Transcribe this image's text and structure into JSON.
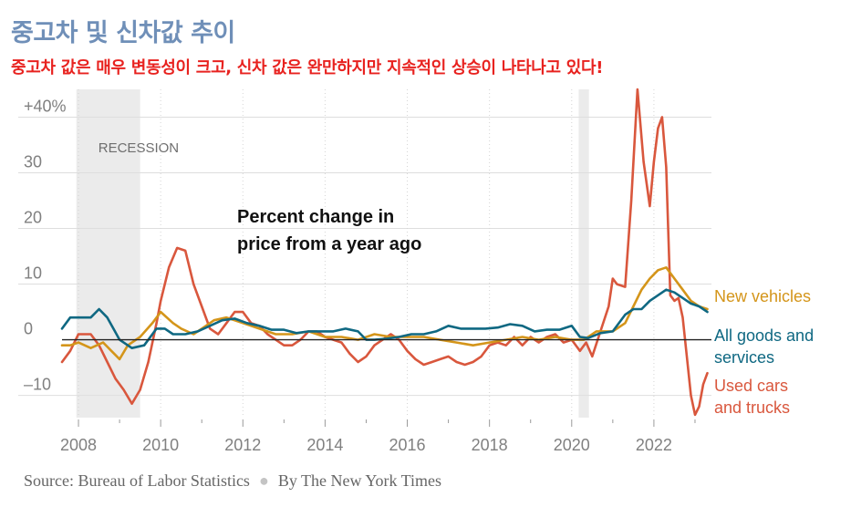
{
  "title": "중고차 및 신차값 추이",
  "subtitle": "중고차 값은 매우 변동성이 크고, 신차 값은 완만하지만 지속적인 상승이 나타나고 있다!",
  "source": {
    "label": "Source: Bureau of Labor Statistics",
    "byline": "By The New York Times"
  },
  "chart_data": {
    "type": "line",
    "title": "Percent change in price from a year ago",
    "annotation_lines": [
      "Percent change in",
      "price from a year ago"
    ],
    "recession_label": "RECESSION",
    "recessions": [
      [
        2007.95,
        2009.5
      ],
      [
        2020.17,
        2020.42
      ]
    ],
    "xlim": [
      2007.6,
      2023.4
    ],
    "ylim": [
      -14,
      45
    ],
    "x_ticks": [
      2008,
      2010,
      2012,
      2014,
      2016,
      2018,
      2020,
      2022
    ],
    "x_tick_labels": [
      "2008",
      "2010",
      "2012",
      "2014",
      "2016",
      "2018",
      "2020",
      "2022"
    ],
    "y_ticks": [
      40,
      30,
      20,
      10,
      0,
      -10
    ],
    "y_tick_labels": [
      "+40%",
      "30",
      "20",
      "10",
      "0",
      "–10"
    ],
    "series": [
      {
        "name": "New vehicles",
        "legend": [
          "New vehicles"
        ],
        "color": "#d4951a",
        "points": [
          [
            2007.6,
            -1
          ],
          [
            2007.8,
            -1
          ],
          [
            2008.0,
            -0.5
          ],
          [
            2008.3,
            -1.5
          ],
          [
            2008.6,
            -0.5
          ],
          [
            2008.8,
            -2
          ],
          [
            2009.0,
            -3.5
          ],
          [
            2009.2,
            -1
          ],
          [
            2009.5,
            0.5
          ],
          [
            2009.8,
            3
          ],
          [
            2010.0,
            5
          ],
          [
            2010.3,
            3
          ],
          [
            2010.5,
            2
          ],
          [
            2010.8,
            1
          ],
          [
            2011.0,
            2
          ],
          [
            2011.3,
            3.5
          ],
          [
            2011.6,
            4
          ],
          [
            2012.0,
            3
          ],
          [
            2012.4,
            2
          ],
          [
            2012.8,
            1
          ],
          [
            2013.2,
            1
          ],
          [
            2013.6,
            1.5
          ],
          [
            2014.0,
            0.5
          ],
          [
            2014.4,
            0.5
          ],
          [
            2014.8,
            0
          ],
          [
            2015.2,
            1
          ],
          [
            2015.6,
            0.5
          ],
          [
            2016.0,
            0.5
          ],
          [
            2016.4,
            0.5
          ],
          [
            2016.8,
            0
          ],
          [
            2017.2,
            -0.5
          ],
          [
            2017.6,
            -1
          ],
          [
            2018.0,
            -0.5
          ],
          [
            2018.4,
            0
          ],
          [
            2018.8,
            0.5
          ],
          [
            2019.2,
            0
          ],
          [
            2019.6,
            0.5
          ],
          [
            2020.0,
            0
          ],
          [
            2020.3,
            0
          ],
          [
            2020.6,
            1.5
          ],
          [
            2021.0,
            1.5
          ],
          [
            2021.3,
            3
          ],
          [
            2021.5,
            6
          ],
          [
            2021.7,
            9
          ],
          [
            2021.9,
            11
          ],
          [
            2022.1,
            12.5
          ],
          [
            2022.3,
            13
          ],
          [
            2022.5,
            11
          ],
          [
            2022.7,
            9
          ],
          [
            2022.9,
            7
          ],
          [
            2023.1,
            6
          ],
          [
            2023.3,
            5.5
          ]
        ]
      },
      {
        "name": "All goods and services",
        "legend": [
          "All goods and",
          "services"
        ],
        "color": "#0f6882",
        "points": [
          [
            2007.6,
            2
          ],
          [
            2007.8,
            4
          ],
          [
            2008.0,
            4
          ],
          [
            2008.3,
            4
          ],
          [
            2008.5,
            5.5
          ],
          [
            2008.7,
            4
          ],
          [
            2009.0,
            0
          ],
          [
            2009.3,
            -1.5
          ],
          [
            2009.6,
            -1
          ],
          [
            2009.9,
            2
          ],
          [
            2010.1,
            2
          ],
          [
            2010.3,
            1
          ],
          [
            2010.6,
            1
          ],
          [
            2010.9,
            1.5
          ],
          [
            2011.2,
            2.5
          ],
          [
            2011.5,
            3.5
          ],
          [
            2011.8,
            3.8
          ],
          [
            2012.1,
            3
          ],
          [
            2012.4,
            2.5
          ],
          [
            2012.7,
            1.8
          ],
          [
            2013.0,
            1.8
          ],
          [
            2013.3,
            1.2
          ],
          [
            2013.6,
            1.5
          ],
          [
            2013.9,
            1.5
          ],
          [
            2014.2,
            1.5
          ],
          [
            2014.5,
            2
          ],
          [
            2014.8,
            1.5
          ],
          [
            2015.0,
            0
          ],
          [
            2015.2,
            0
          ],
          [
            2015.5,
            0.2
          ],
          [
            2015.8,
            0.5
          ],
          [
            2016.1,
            1
          ],
          [
            2016.4,
            1
          ],
          [
            2016.7,
            1.5
          ],
          [
            2017.0,
            2.5
          ],
          [
            2017.3,
            2
          ],
          [
            2017.6,
            2
          ],
          [
            2017.9,
            2
          ],
          [
            2018.2,
            2.2
          ],
          [
            2018.5,
            2.8
          ],
          [
            2018.8,
            2.5
          ],
          [
            2019.1,
            1.5
          ],
          [
            2019.4,
            1.8
          ],
          [
            2019.7,
            1.8
          ],
          [
            2020.0,
            2.5
          ],
          [
            2020.2,
            0.5
          ],
          [
            2020.4,
            0.3
          ],
          [
            2020.7,
            1.2
          ],
          [
            2021.0,
            1.5
          ],
          [
            2021.3,
            4.5
          ],
          [
            2021.5,
            5.5
          ],
          [
            2021.7,
            5.5
          ],
          [
            2021.9,
            7
          ],
          [
            2022.1,
            8
          ],
          [
            2022.3,
            9
          ],
          [
            2022.5,
            8.5
          ],
          [
            2022.7,
            7.5
          ],
          [
            2022.9,
            6.5
          ],
          [
            2023.1,
            6
          ],
          [
            2023.3,
            5
          ]
        ]
      },
      {
        "name": "Used cars and trucks",
        "legend": [
          "Used cars",
          "and trucks"
        ],
        "color": "#d9573d",
        "points": [
          [
            2007.6,
            -4
          ],
          [
            2007.8,
            -2
          ],
          [
            2008.0,
            1
          ],
          [
            2008.3,
            1
          ],
          [
            2008.5,
            -1
          ],
          [
            2008.7,
            -4
          ],
          [
            2008.9,
            -7
          ],
          [
            2009.1,
            -9
          ],
          [
            2009.3,
            -11.5
          ],
          [
            2009.5,
            -9
          ],
          [
            2009.7,
            -4
          ],
          [
            2009.9,
            3
          ],
          [
            2010.0,
            7
          ],
          [
            2010.2,
            13
          ],
          [
            2010.4,
            16.5
          ],
          [
            2010.6,
            16
          ],
          [
            2010.8,
            10
          ],
          [
            2011.0,
            6
          ],
          [
            2011.2,
            2
          ],
          [
            2011.4,
            1
          ],
          [
            2011.6,
            3
          ],
          [
            2011.8,
            5
          ],
          [
            2012.0,
            5
          ],
          [
            2012.2,
            3
          ],
          [
            2012.4,
            2.5
          ],
          [
            2012.6,
            1
          ],
          [
            2012.8,
            0
          ],
          [
            2013.0,
            -1
          ],
          [
            2013.2,
            -1
          ],
          [
            2013.4,
            0
          ],
          [
            2013.6,
            1.5
          ],
          [
            2013.8,
            1.5
          ],
          [
            2014.0,
            0.5
          ],
          [
            2014.2,
            0
          ],
          [
            2014.4,
            -0.5
          ],
          [
            2014.6,
            -2.5
          ],
          [
            2014.8,
            -4
          ],
          [
            2015.0,
            -3
          ],
          [
            2015.2,
            -1
          ],
          [
            2015.4,
            0
          ],
          [
            2015.6,
            1
          ],
          [
            2015.8,
            0
          ],
          [
            2016.0,
            -2
          ],
          [
            2016.2,
            -3.5
          ],
          [
            2016.4,
            -4.5
          ],
          [
            2016.6,
            -4
          ],
          [
            2016.8,
            -3.5
          ],
          [
            2017.0,
            -3
          ],
          [
            2017.2,
            -4
          ],
          [
            2017.4,
            -4.5
          ],
          [
            2017.6,
            -4
          ],
          [
            2017.8,
            -3
          ],
          [
            2018.0,
            -1
          ],
          [
            2018.2,
            -0.5
          ],
          [
            2018.4,
            -1
          ],
          [
            2018.6,
            0.5
          ],
          [
            2018.8,
            -1
          ],
          [
            2019.0,
            0.5
          ],
          [
            2019.2,
            -0.5
          ],
          [
            2019.4,
            0.5
          ],
          [
            2019.6,
            1
          ],
          [
            2019.8,
            -0.5
          ],
          [
            2020.0,
            0
          ],
          [
            2020.2,
            -2
          ],
          [
            2020.35,
            -0.5
          ],
          [
            2020.5,
            -3
          ],
          [
            2020.7,
            1.5
          ],
          [
            2020.9,
            6
          ],
          [
            2021.0,
            11
          ],
          [
            2021.1,
            10
          ],
          [
            2021.3,
            9.5
          ],
          [
            2021.45,
            25
          ],
          [
            2021.6,
            45
          ],
          [
            2021.75,
            32
          ],
          [
            2021.9,
            24
          ],
          [
            2022.0,
            32
          ],
          [
            2022.1,
            38
          ],
          [
            2022.2,
            40
          ],
          [
            2022.3,
            31
          ],
          [
            2022.4,
            8
          ],
          [
            2022.5,
            7
          ],
          [
            2022.6,
            7.5
          ],
          [
            2022.7,
            4
          ],
          [
            2022.8,
            -3
          ],
          [
            2022.9,
            -10
          ],
          [
            2023.0,
            -13.5
          ],
          [
            2023.1,
            -12
          ],
          [
            2023.2,
            -8
          ],
          [
            2023.3,
            -6
          ]
        ]
      }
    ]
  }
}
